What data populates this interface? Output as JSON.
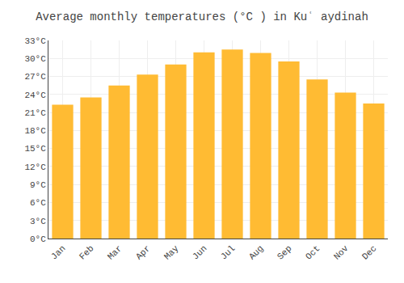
{
  "chart_data": {
    "type": "bar",
    "title": "Average monthly temperatures (°C ) in Kuʿ aydinah",
    "categories": [
      "Jan",
      "Feb",
      "Mar",
      "Apr",
      "May",
      "Jun",
      "Jul",
      "Aug",
      "Sep",
      "Oct",
      "Nov",
      "Dec"
    ],
    "values": [
      22.3,
      23.5,
      25.5,
      27.3,
      29.0,
      31.0,
      31.5,
      30.9,
      29.5,
      26.5,
      24.3,
      22.5
    ],
    "color": "#FFBB33",
    "ylim": [
      0,
      33
    ],
    "yticks": [
      {
        "value": 0,
        "label": "0°C"
      },
      {
        "value": 3,
        "label": "3°C"
      },
      {
        "value": 6,
        "label": "6°C"
      },
      {
        "value": 9,
        "label": "9°C"
      },
      {
        "value": 12,
        "label": "12°C"
      },
      {
        "value": 15,
        "label": "15°C"
      },
      {
        "value": 18,
        "label": "18°C"
      },
      {
        "value": 21,
        "label": "21°C"
      },
      {
        "value": 24,
        "label": "24°C"
      },
      {
        "value": 27,
        "label": "27°C"
      },
      {
        "value": 30,
        "label": "30°C"
      },
      {
        "value": 33,
        "label": "33°C"
      }
    ],
    "grid": true
  }
}
